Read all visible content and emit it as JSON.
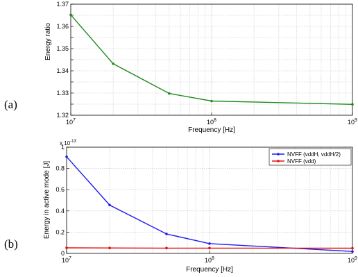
{
  "chart_data": [
    {
      "id": "a",
      "type": "line",
      "panel_label": "(a)",
      "xscale": "log",
      "xlim": [
        10000000,
        1000000000
      ],
      "ylim": [
        1.32,
        1.37
      ],
      "xlabel": "Frequency [Hz]",
      "ylabel": "Energy ratio",
      "x_ticks": [
        10000000,
        100000000,
        1000000000
      ],
      "x_tick_labels": [
        {
          "base": "10",
          "exp": "7"
        },
        {
          "base": "10",
          "exp": "8"
        },
        {
          "base": "10",
          "exp": "9"
        }
      ],
      "y_ticks": [
        1.32,
        1.325,
        1.33,
        1.335,
        1.34,
        1.345,
        1.35,
        1.355,
        1.36,
        1.365,
        1.37
      ],
      "y_tick_labels": [
        "1.32",
        "1.325",
        "1.33",
        "1.335",
        "1.34",
        "1.345",
        "1.35",
        "1.355",
        "1.36",
        "1.365",
        "1.37"
      ],
      "grid": true,
      "series": [
        {
          "color": "#1f8a1f",
          "x": [
            10000000,
            20000000,
            50000000,
            100000000,
            1000000000
          ],
          "values": [
            1.3652,
            1.3432,
            1.3298,
            1.3264,
            1.3249
          ]
        }
      ]
    },
    {
      "id": "b",
      "type": "line",
      "panel_label": "(b)",
      "xscale": "log",
      "xlim": [
        10000000,
        1000000000
      ],
      "ylim": [
        0,
        1
      ],
      "y_multiplier": {
        "base": "x 10",
        "exp": "-13"
      },
      "xlabel": "Frequency [Hz]",
      "ylabel": "Energy in active mode [J]",
      "x_ticks": [
        10000000,
        100000000,
        1000000000
      ],
      "x_tick_labels": [
        {
          "base": "10",
          "exp": "7"
        },
        {
          "base": "10",
          "exp": "8"
        },
        {
          "base": "10",
          "exp": "9"
        }
      ],
      "y_ticks": [
        0,
        0.2,
        0.4,
        0.6,
        0.8,
        1
      ],
      "y_tick_labels": [
        "0",
        "0.2",
        "0.4",
        "0.6",
        "0.8",
        "1"
      ],
      "grid": true,
      "legend_position": "top-right",
      "series": [
        {
          "name": "NVFF (vddH, vddH/2)",
          "color": "#1c1cf0",
          "x": [
            10000000,
            20000000,
            50000000,
            100000000,
            1000000000
          ],
          "values": [
            0.91,
            0.455,
            0.183,
            0.092,
            0.018
          ]
        },
        {
          "name": "NVFF (vdd)",
          "color": "#e01010",
          "x": [
            10000000,
            20000000,
            50000000,
            100000000,
            1000000000
          ],
          "values": [
            0.052,
            0.051,
            0.05,
            0.05,
            0.049
          ]
        }
      ]
    }
  ]
}
